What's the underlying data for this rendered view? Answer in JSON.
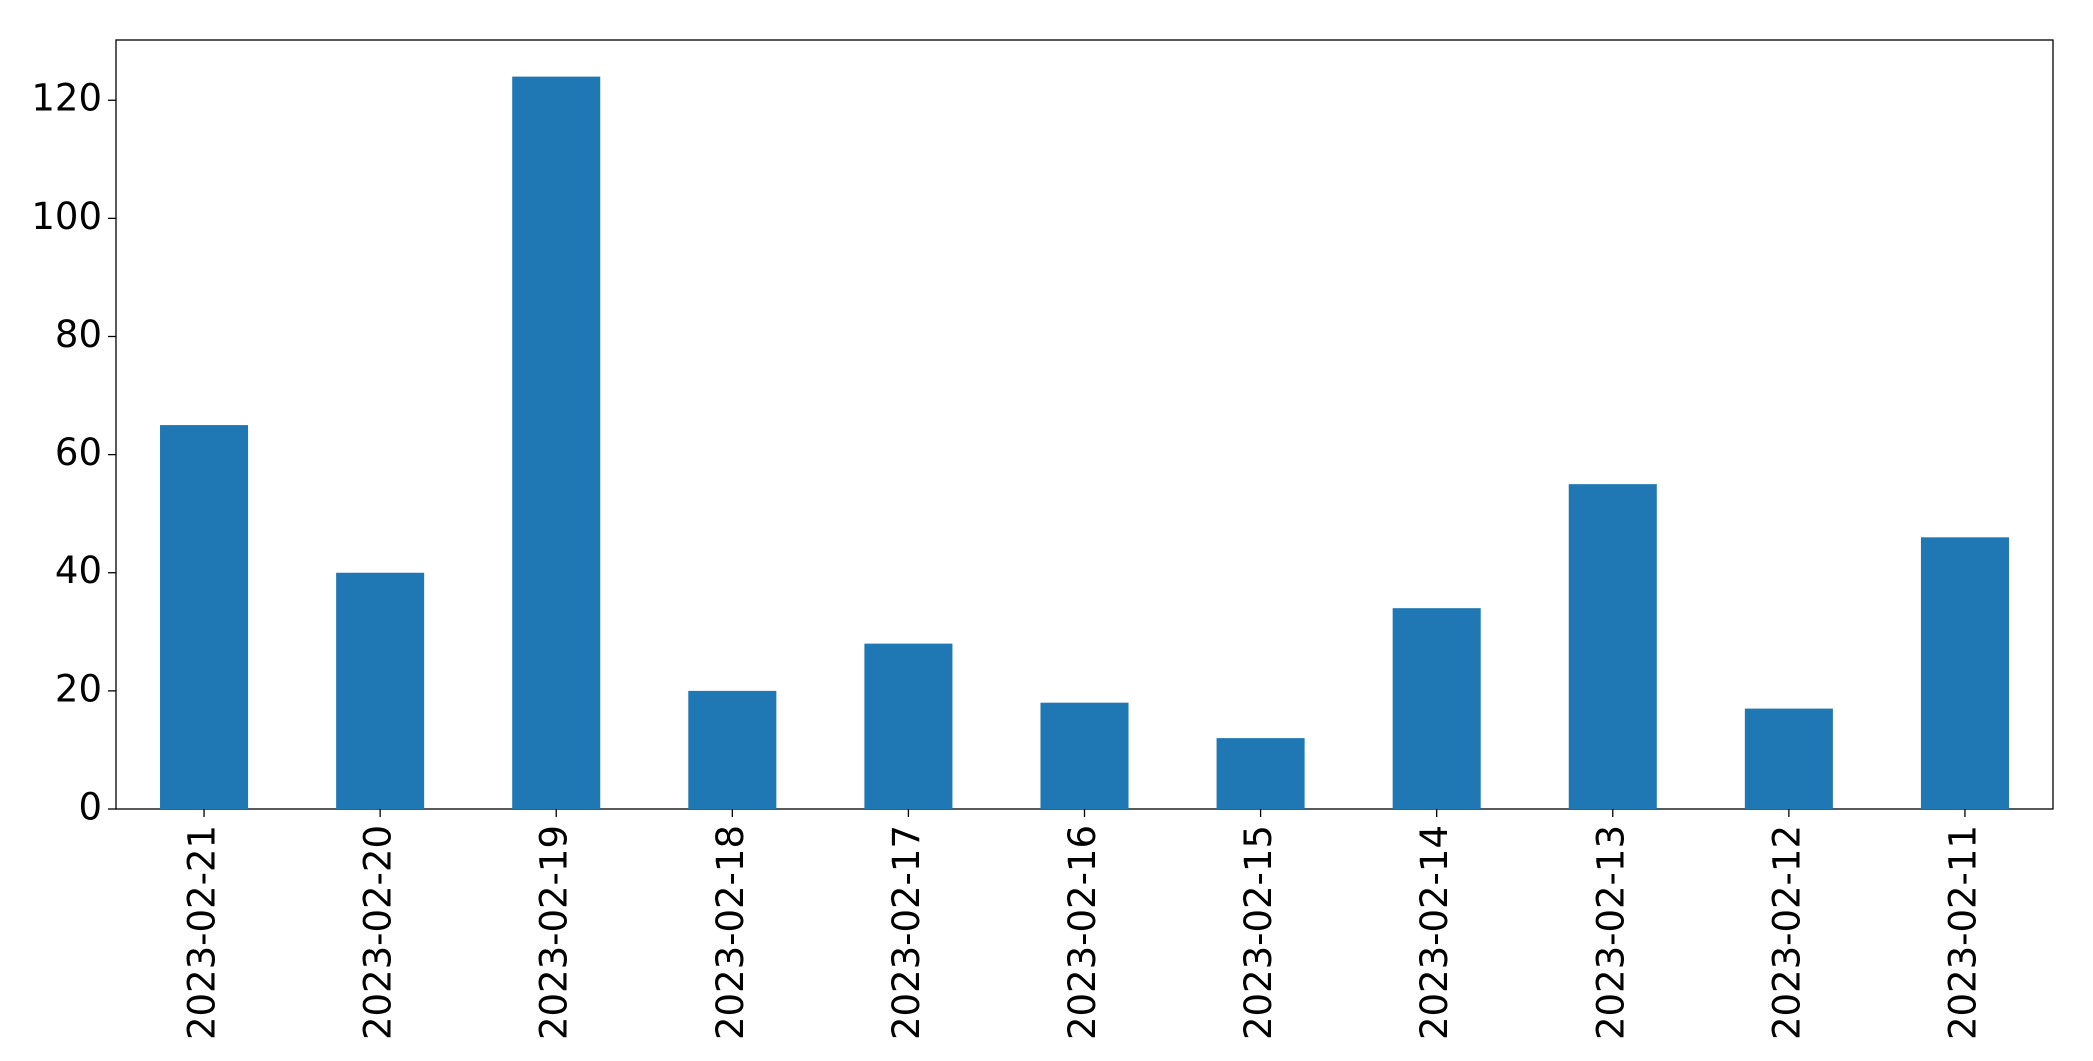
{
  "chart_data": {
    "type": "bar",
    "categories": [
      "2023-02-21",
      "2023-02-20",
      "2023-02-19",
      "2023-02-18",
      "2023-02-17",
      "2023-02-16",
      "2023-02-15",
      "2023-02-14",
      "2023-02-13",
      "2023-02-12",
      "2023-02-11"
    ],
    "values": [
      65,
      40,
      124,
      20,
      28,
      18,
      12,
      34,
      55,
      17,
      46
    ],
    "color": "#1f77b4",
    "ylim": [
      0,
      130.2
    ],
    "yticks": [
      0,
      20,
      40,
      60,
      80,
      100,
      120
    ],
    "grid": false
  }
}
